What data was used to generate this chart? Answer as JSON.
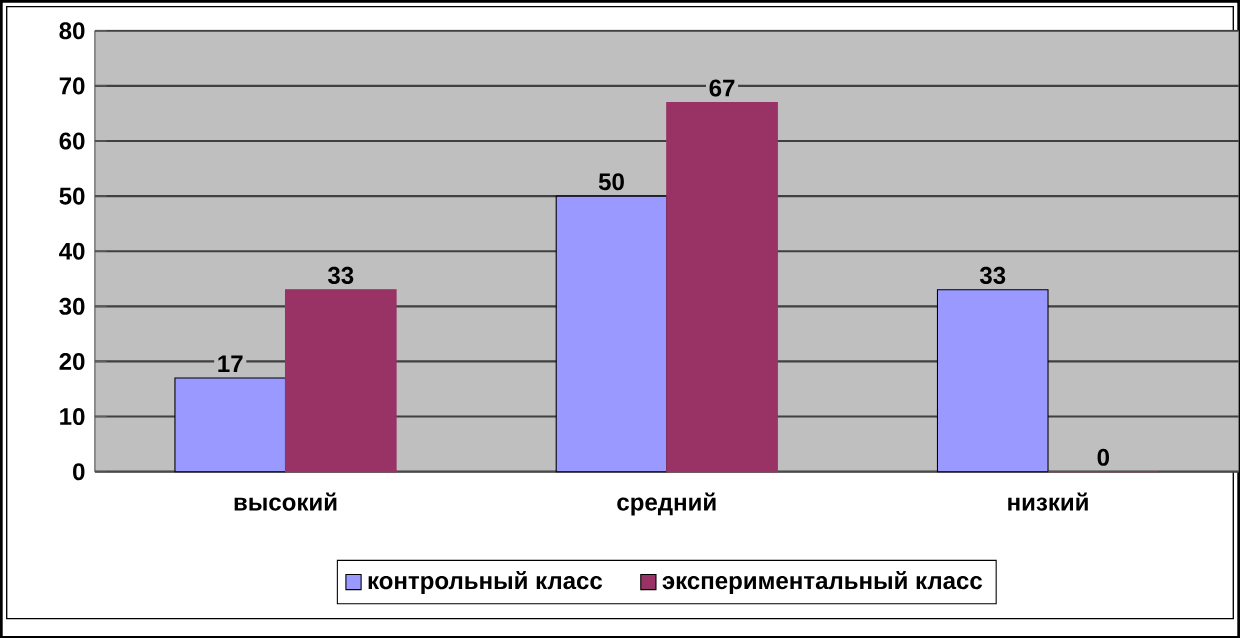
{
  "chart_data": {
    "type": "bar",
    "categories": [
      "высокий",
      "средний",
      "низкий"
    ],
    "series": [
      {
        "name": "контрольный класс",
        "color": "#9999ff",
        "values": [
          17,
          50,
          33
        ]
      },
      {
        "name": "экспериментальный класс",
        "color": "#993366",
        "values": [
          33,
          67,
          0
        ]
      }
    ],
    "ylim": [
      0,
      80
    ],
    "yticks": [
      0,
      10,
      20,
      30,
      40,
      50,
      60,
      70,
      80
    ],
    "grid": "y",
    "legend": "bottom",
    "data_labels": true
  }
}
